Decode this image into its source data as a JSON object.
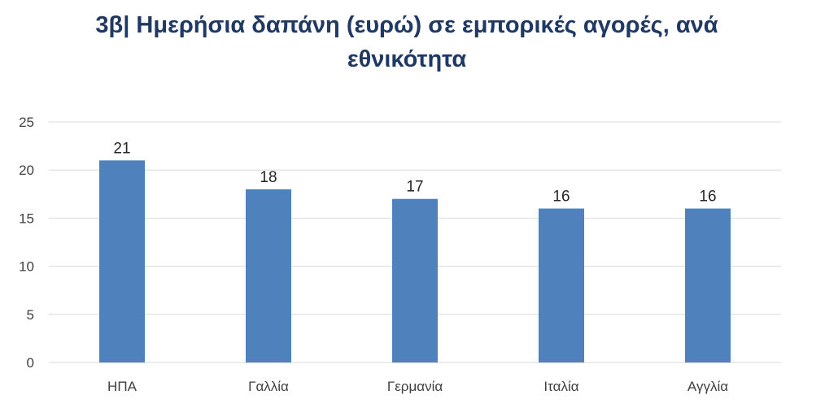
{
  "title_line1": "3β| Ημερήσια δαπάνη (ευρώ) σε εμπορικές αγορές, ανά",
  "title_line2": "εθνικότητα",
  "colors": {
    "bar": "#4F81BD",
    "title": "#1F3864",
    "grid": "#d9d9d9"
  },
  "chart_data": {
    "type": "bar",
    "title": "3β| Ημερήσια δαπάνη (ευρώ) σε εμπορικές αγορές, ανά εθνικότητα",
    "categories": [
      "ΗΠΑ",
      "Γαλλία",
      "Γερμανία",
      "Ιταλία",
      "Αγγλία"
    ],
    "values": [
      21,
      18,
      17,
      16,
      16
    ],
    "xlabel": "",
    "ylabel": "",
    "ylim": [
      0,
      25
    ],
    "yticks": [
      0,
      5,
      10,
      15,
      20,
      25
    ],
    "grid": true,
    "legend": "none",
    "data_labels": true
  }
}
